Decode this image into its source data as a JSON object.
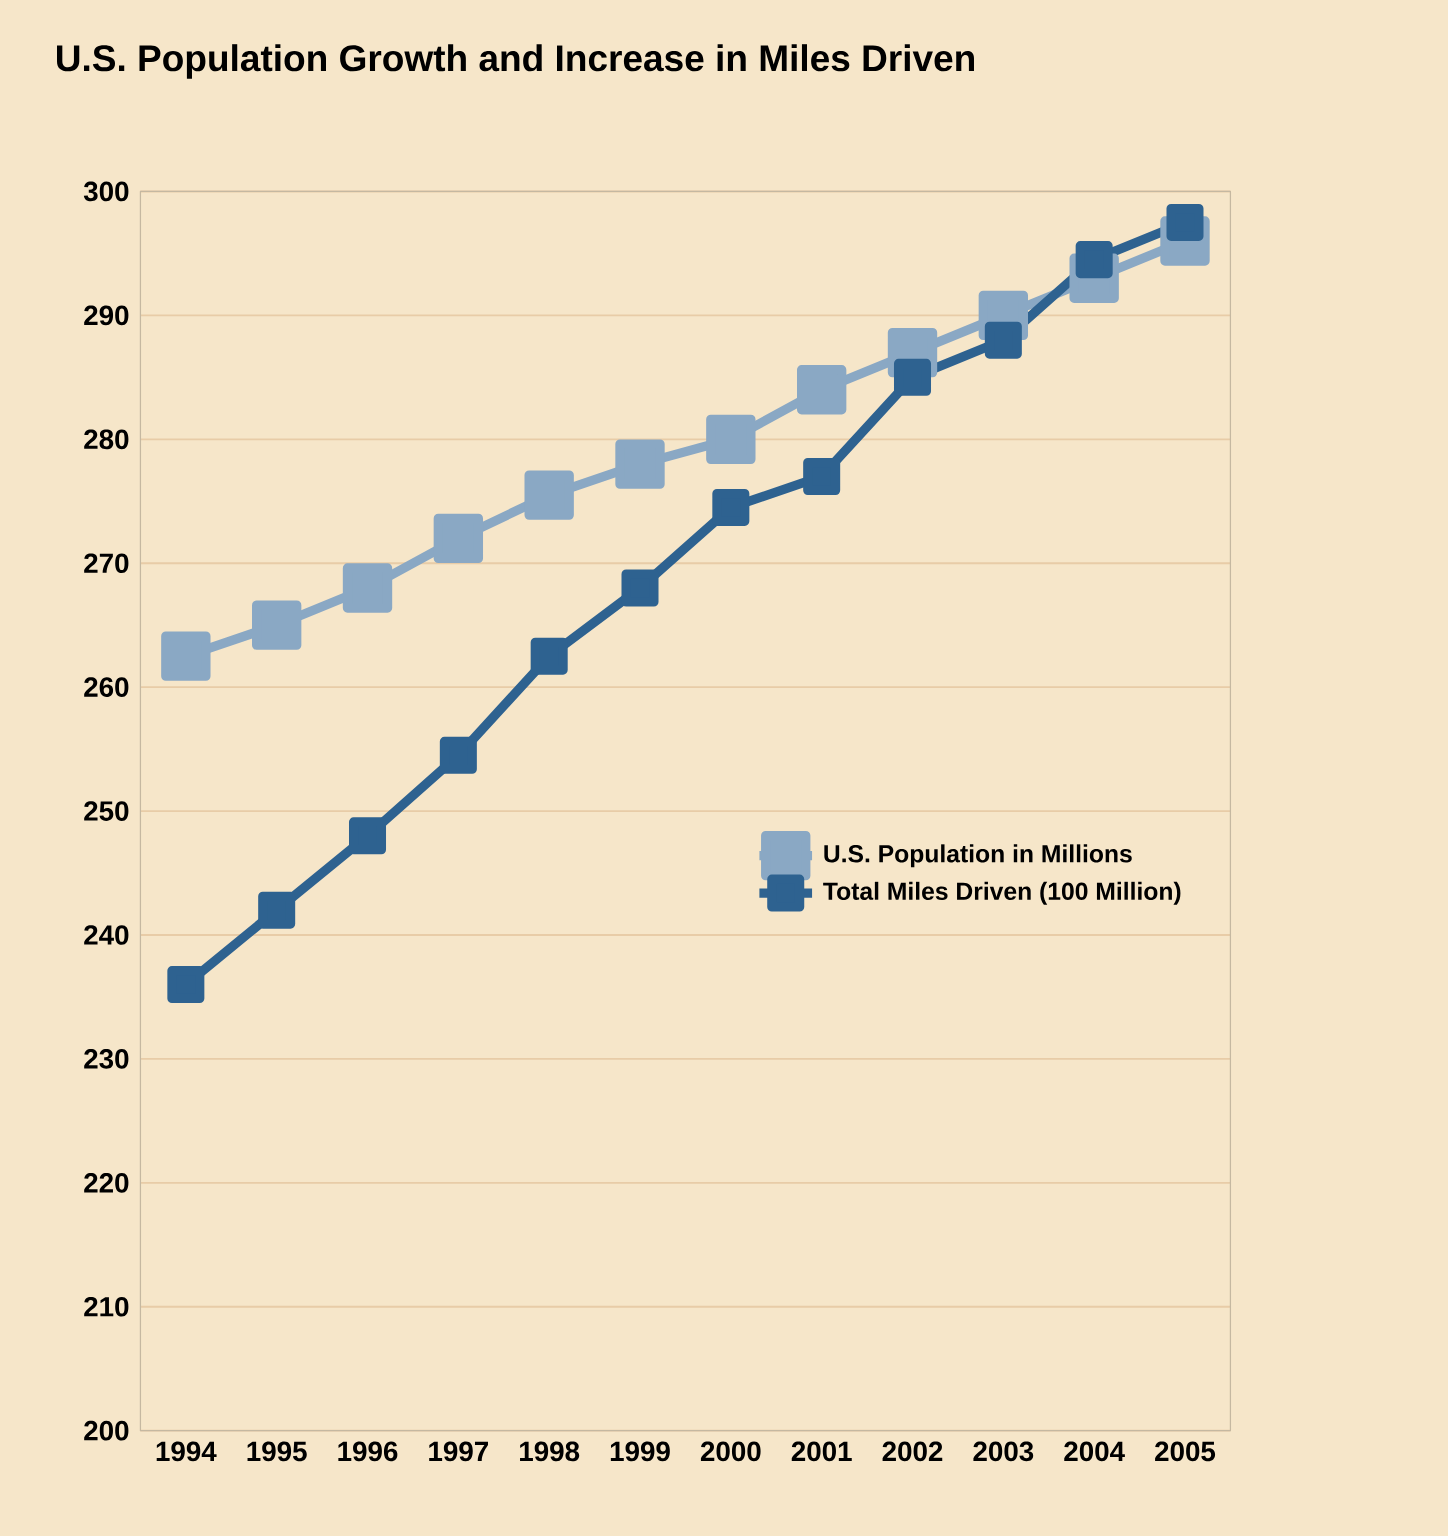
{
  "chart_data": {
    "type": "line",
    "title": "U.S. Population Growth and Increase in Miles Driven",
    "categories": [
      "1994",
      "1995",
      "1996",
      "1997",
      "1998",
      "1999",
      "2000",
      "2001",
      "2002",
      "2003",
      "2004",
      "2005"
    ],
    "series": [
      {
        "name": "U.S. Population in Millions",
        "color": "#8aa8c4",
        "values": [
          262.5,
          265,
          268,
          272,
          275.5,
          278,
          280,
          284,
          287,
          290,
          293,
          296
        ]
      },
      {
        "name": "Total Miles Driven (100 Million)",
        "color": "#2e6290",
        "values": [
          236,
          242,
          248,
          254.5,
          262.5,
          268,
          274.5,
          277,
          285,
          288,
          294.5,
          297.5
        ]
      }
    ],
    "ylim": [
      200,
      300
    ],
    "yticks": [
      200,
      210,
      220,
      230,
      240,
      250,
      260,
      270,
      280,
      290,
      300
    ],
    "grid": "y",
    "legend": "right",
    "marker": "square",
    "line_style": "solid"
  }
}
